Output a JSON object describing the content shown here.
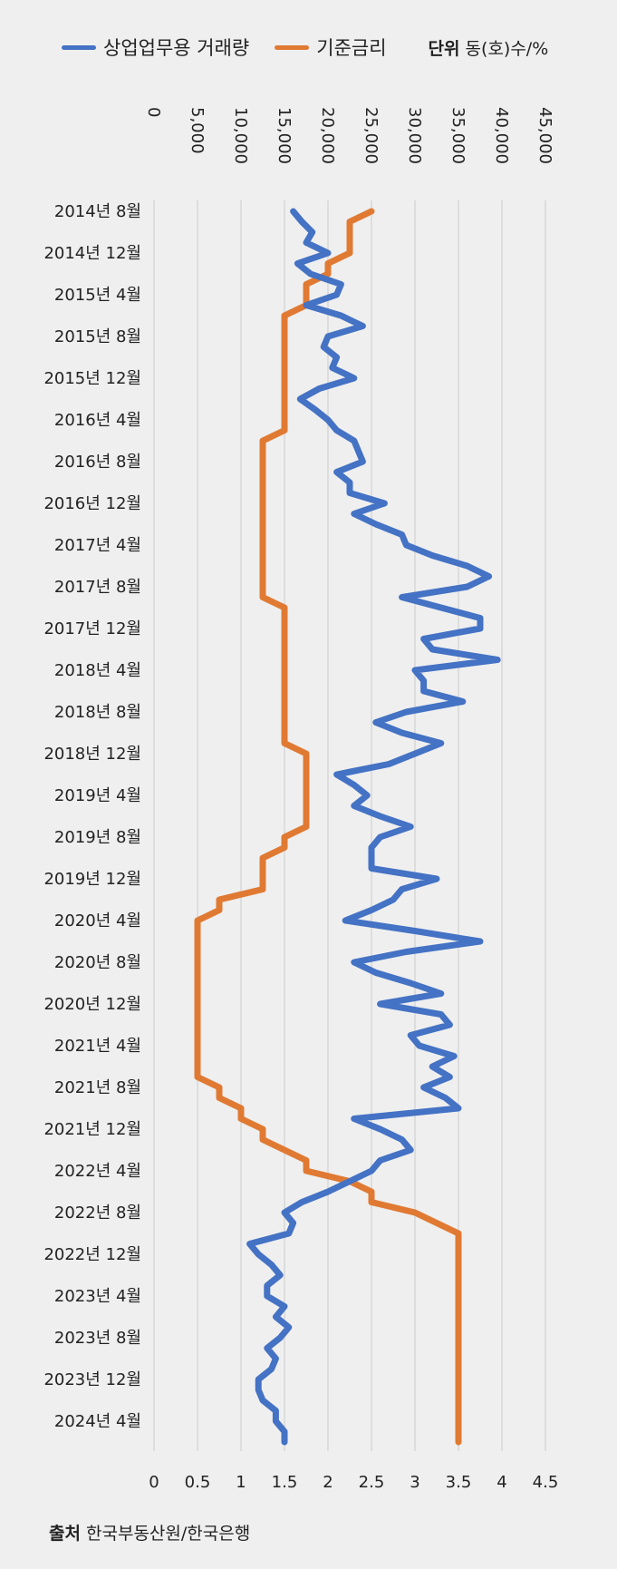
{
  "legend": {
    "series1": "상업업무용 거래량",
    "series2": "기준금리",
    "unit_title": "단위",
    "unit_value": "동(호)수/%"
  },
  "source": {
    "title": "출처",
    "text": "한국부동산원/한국은행"
  },
  "colors": {
    "volume": "#4472c4",
    "rate": "#e07a33",
    "grid": "#dddddd",
    "background": "#efefef"
  },
  "chart_data": {
    "type": "line",
    "orientation": "horizontal",
    "categories": [
      "2014년 8월",
      "2014년 9월",
      "2014년 10월",
      "2014년 11월",
      "2014년 12월",
      "2015년 1월",
      "2015년 2월",
      "2015년 3월",
      "2015년 4월",
      "2015년 5월",
      "2015년 6월",
      "2015년 7월",
      "2015년 8월",
      "2015년 9월",
      "2015년 10월",
      "2015년 11월",
      "2015년 12월",
      "2016년 1월",
      "2016년 2월",
      "2016년 3월",
      "2016년 4월",
      "2016년 5월",
      "2016년 6월",
      "2016년 7월",
      "2016년 8월",
      "2016년 9월",
      "2016년 10월",
      "2016년 11월",
      "2016년 12월",
      "2017년 1월",
      "2017년 2월",
      "2017년 3월",
      "2017년 4월",
      "2017년 5월",
      "2017년 6월",
      "2017년 7월",
      "2017년 8월",
      "2017년 9월",
      "2017년 10월",
      "2017년 11월",
      "2017년 12월",
      "2018년 1월",
      "2018년 2월",
      "2018년 3월",
      "2018년 4월",
      "2018년 5월",
      "2018년 6월",
      "2018년 7월",
      "2018년 8월",
      "2018년 9월",
      "2018년 10월",
      "2018년 11월",
      "2018년 12월",
      "2019년 1월",
      "2019년 2월",
      "2019년 3월",
      "2019년 4월",
      "2019년 5월",
      "2019년 6월",
      "2019년 7월",
      "2019년 8월",
      "2019년 9월",
      "2019년 10월",
      "2019년 11월",
      "2019년 12월",
      "2020년 1월",
      "2020년 2월",
      "2020년 3월",
      "2020년 4월",
      "2020년 5월",
      "2020년 6월",
      "2020년 7월",
      "2020년 8월",
      "2020년 9월",
      "2020년 10월",
      "2020년 11월",
      "2020년 12월",
      "2021년 1월",
      "2021년 2월",
      "2021년 3월",
      "2021년 4월",
      "2021년 5월",
      "2021년 6월",
      "2021년 7월",
      "2021년 8월",
      "2021년 9월",
      "2021년 10월",
      "2021년 11월",
      "2021년 12월",
      "2022년 1월",
      "2022년 2월",
      "2022년 3월",
      "2022년 4월",
      "2022년 5월",
      "2022년 6월",
      "2022년 7월",
      "2022년 8월",
      "2022년 9월",
      "2022년 10월",
      "2022년 11월",
      "2022년 12월",
      "2023년 1월",
      "2023년 2월",
      "2023년 3월",
      "2023년 4월",
      "2023년 5월",
      "2023년 6월",
      "2023년 7월",
      "2023년 8월",
      "2023년 9월",
      "2023년 10월",
      "2023년 11월",
      "2023년 12월",
      "2024년 1월",
      "2024년 2월",
      "2024년 3월",
      "2024년 4월",
      "2024년 5월",
      "2024년 6월"
    ],
    "category_labels": [
      "2014년 8월",
      "2014년 12월",
      "2015년 4월",
      "2015년 8월",
      "2015년 12월",
      "2016년 4월",
      "2016년 8월",
      "2016년 12월",
      "2017년 4월",
      "2017년 8월",
      "2017년 12월",
      "2018년 4월",
      "2018년 8월",
      "2018년 12월",
      "2019년 4월",
      "2019년 8월",
      "2019년 12월",
      "2020년 4월",
      "2020년 8월",
      "2020년 12월",
      "2021년 4월",
      "2021년 8월",
      "2021년 12월",
      "2022년 4월",
      "2022년 8월",
      "2022년 12월",
      "2023년 4월",
      "2023년 8월",
      "2023년 12월",
      "2024년 4월"
    ],
    "series": [
      {
        "name": "상업업무용 거래량",
        "axis": "top",
        "values": [
          16000,
          17000,
          18200,
          17500,
          20000,
          16500,
          18000,
          21500,
          21000,
          17500,
          21500,
          24000,
          20000,
          19500,
          21000,
          20500,
          23000,
          19000,
          16800,
          18500,
          20000,
          21000,
          23000,
          23500,
          24000,
          21000,
          22500,
          22500,
          26500,
          23000,
          25500,
          28500,
          29000,
          32000,
          36000,
          38500,
          36000,
          28500,
          33000,
          37500,
          37500,
          31000,
          32000,
          39500,
          30000,
          31000,
          31000,
          35500,
          29000,
          25500,
          28500,
          33000,
          30000,
          27000,
          21000,
          23000,
          24500,
          23000,
          26000,
          29500,
          26000,
          25000,
          25000,
          25000,
          32500,
          28500,
          27500,
          25000,
          22000,
          30000,
          37500,
          29000,
          23000,
          25500,
          29500,
          33000,
          26000,
          33000,
          34000,
          29500,
          30500,
          34500,
          32000,
          34000,
          31000,
          33500,
          35000,
          23000,
          26000,
          28500,
          29500,
          26000,
          25000,
          22500,
          20000,
          17000,
          15000,
          16000,
          15500,
          11000,
          12000,
          13500,
          14500,
          13000,
          13000,
          15000,
          14000,
          15500,
          14500,
          13000,
          14000,
          13500,
          12000,
          12000,
          12500,
          14000,
          14000,
          15000,
          15000
        ],
        "xlim": [
          0,
          45000
        ],
        "ticks": [
          "0",
          "5,000",
          "10,000",
          "15,000",
          "20,000",
          "25,000",
          "30,000",
          "35,000",
          "40,000",
          "45,000"
        ]
      },
      {
        "name": "기준금리",
        "axis": "bottom",
        "values": [
          2.5,
          2.25,
          2.25,
          2.25,
          2.25,
          2.0,
          2.0,
          1.75,
          1.75,
          1.75,
          1.5,
          1.5,
          1.5,
          1.5,
          1.5,
          1.5,
          1.5,
          1.5,
          1.5,
          1.5,
          1.5,
          1.5,
          1.25,
          1.25,
          1.25,
          1.25,
          1.25,
          1.25,
          1.25,
          1.25,
          1.25,
          1.25,
          1.25,
          1.25,
          1.25,
          1.25,
          1.25,
          1.25,
          1.5,
          1.5,
          1.5,
          1.5,
          1.5,
          1.5,
          1.5,
          1.5,
          1.5,
          1.5,
          1.5,
          1.5,
          1.5,
          1.5,
          1.75,
          1.75,
          1.75,
          1.75,
          1.75,
          1.75,
          1.75,
          1.75,
          1.5,
          1.5,
          1.25,
          1.25,
          1.25,
          1.25,
          0.75,
          0.75,
          0.5,
          0.5,
          0.5,
          0.5,
          0.5,
          0.5,
          0.5,
          0.5,
          0.5,
          0.5,
          0.5,
          0.5,
          0.5,
          0.5,
          0.5,
          0.5,
          0.75,
          0.75,
          1.0,
          1.0,
          1.25,
          1.25,
          1.5,
          1.75,
          1.75,
          2.25,
          2.5,
          2.5,
          3.0,
          3.25,
          3.5,
          3.5,
          3.5,
          3.5,
          3.5,
          3.5,
          3.5,
          3.5,
          3.5,
          3.5,
          3.5,
          3.5,
          3.5,
          3.5,
          3.5,
          3.5,
          3.5,
          3.5,
          3.5,
          3.5,
          3.5
        ],
        "xlim": [
          0,
          4.5
        ],
        "ticks": [
          "0",
          "0.5",
          "1",
          "1.5",
          "2",
          "2.5",
          "3",
          "3.5",
          "4",
          "4.5"
        ]
      }
    ],
    "grid": true,
    "legend_position": "top"
  }
}
